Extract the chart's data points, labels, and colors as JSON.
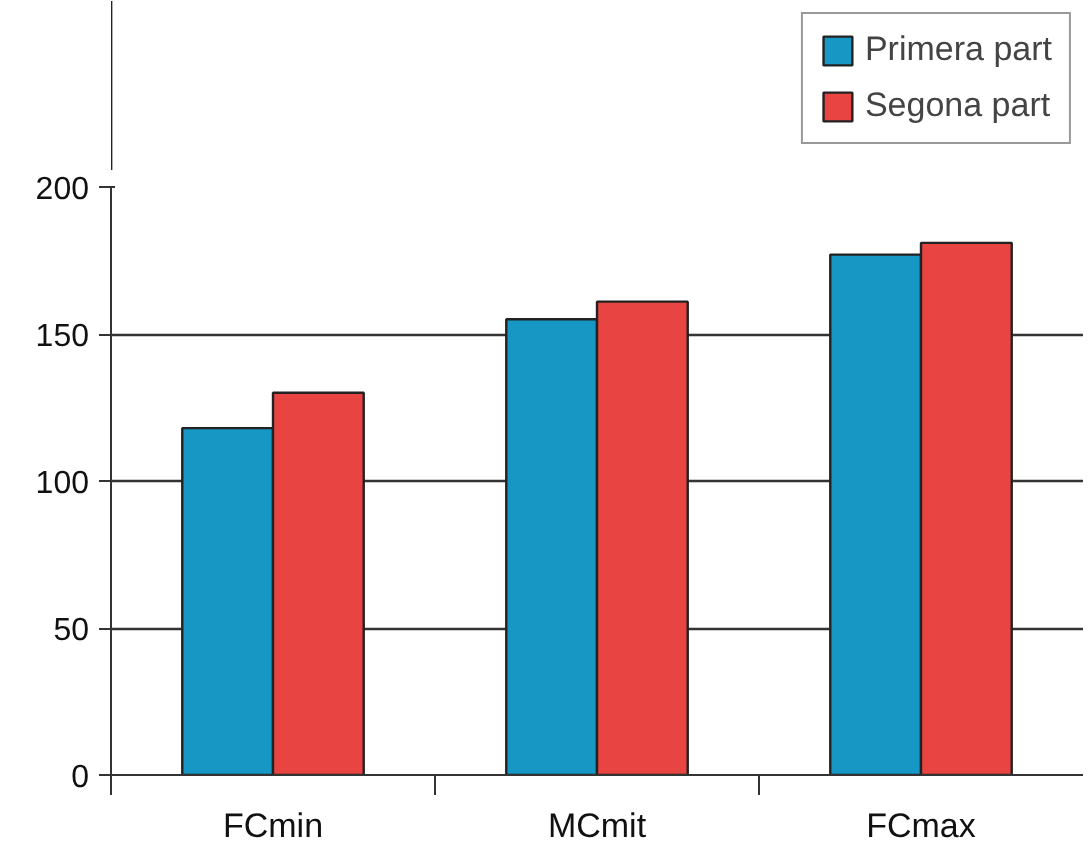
{
  "chart_data": {
    "type": "bar",
    "categories": [
      "FCmin",
      "MCmit",
      "FCmax"
    ],
    "series": [
      {
        "name": "Primera part",
        "color": "#1797c4",
        "values": [
          118,
          155,
          177
        ]
      },
      {
        "name": "Segona part",
        "color": "#e84442",
        "values": [
          130,
          161,
          181
        ]
      }
    ],
    "ylim": [
      0,
      200
    ],
    "yticks": [
      0,
      50,
      100,
      150,
      200
    ],
    "grid": "y",
    "legend": "top right"
  }
}
